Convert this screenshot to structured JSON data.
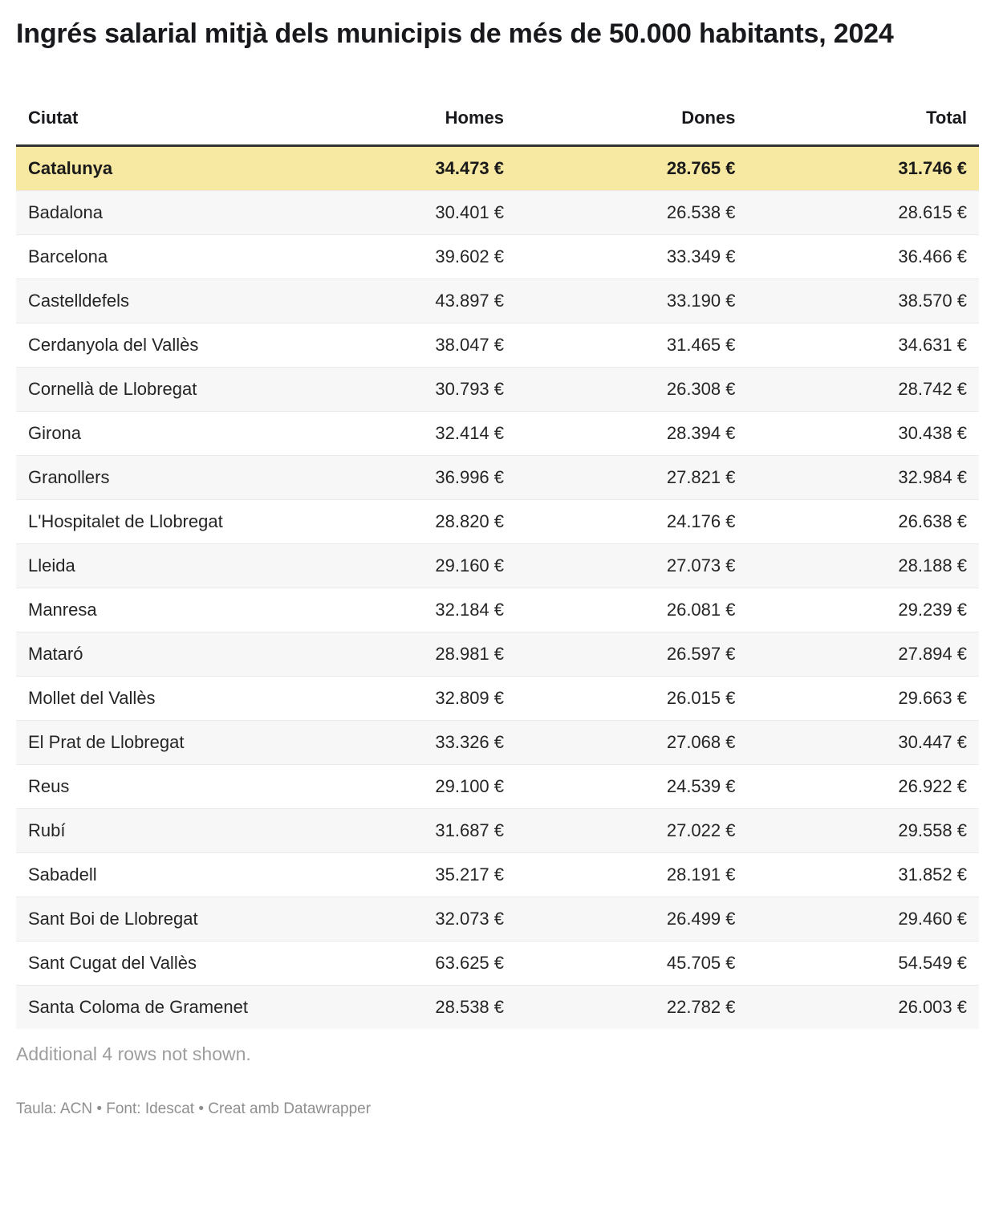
{
  "page": {
    "title": "Ingrés salarial mitjà dels municipis de més de 50.000 habitants, 2024",
    "notes": "Additional 4 rows not shown.",
    "attribution": "Taula: ACN • Font: Idescat • Creat amb Datawrapper"
  },
  "colors": {
    "highlight_row_background": "#f8e9a2",
    "zebra_row_background": "#f7f7f7",
    "header_rule": "#333333",
    "muted_text": "#9e9e9e"
  },
  "chart_data": {
    "type": "table",
    "title": "Ingrés salarial mitjà dels municipis de més de 50.000 habitants, 2024",
    "columns": [
      "Ciutat",
      "Homes",
      "Dones",
      "Total"
    ],
    "highlighted_row": "Catalunya",
    "rows": [
      {
        "ciutat": "Catalunya",
        "homes": "34.473 €",
        "dones": "28.765 €",
        "total": "31.746 €",
        "highlight": true
      },
      {
        "ciutat": "Badalona",
        "homes": "30.401 €",
        "dones": "26.538 €",
        "total": "28.615 €",
        "highlight": false
      },
      {
        "ciutat": "Barcelona",
        "homes": "39.602 €",
        "dones": "33.349 €",
        "total": "36.466 €",
        "highlight": false
      },
      {
        "ciutat": "Castelldefels",
        "homes": "43.897 €",
        "dones": "33.190 €",
        "total": "38.570 €",
        "highlight": false
      },
      {
        "ciutat": "Cerdanyola del Vallès",
        "homes": "38.047 €",
        "dones": "31.465 €",
        "total": "34.631 €",
        "highlight": false
      },
      {
        "ciutat": "Cornellà de Llobregat",
        "homes": "30.793 €",
        "dones": "26.308 €",
        "total": "28.742 €",
        "highlight": false
      },
      {
        "ciutat": "Girona",
        "homes": "32.414 €",
        "dones": "28.394 €",
        "total": "30.438 €",
        "highlight": false
      },
      {
        "ciutat": "Granollers",
        "homes": "36.996 €",
        "dones": "27.821 €",
        "total": "32.984 €",
        "highlight": false
      },
      {
        "ciutat": "L'Hospitalet de Llobregat",
        "homes": "28.820 €",
        "dones": "24.176 €",
        "total": "26.638 €",
        "highlight": false
      },
      {
        "ciutat": "Lleida",
        "homes": "29.160 €",
        "dones": "27.073 €",
        "total": "28.188 €",
        "highlight": false
      },
      {
        "ciutat": "Manresa",
        "homes": "32.184 €",
        "dones": "26.081 €",
        "total": "29.239 €",
        "highlight": false
      },
      {
        "ciutat": "Mataró",
        "homes": "28.981 €",
        "dones": "26.597 €",
        "total": "27.894 €",
        "highlight": false
      },
      {
        "ciutat": "Mollet del Vallès",
        "homes": "32.809 €",
        "dones": "26.015 €",
        "total": "29.663 €",
        "highlight": false
      },
      {
        "ciutat": "El Prat de Llobregat",
        "homes": "33.326 €",
        "dones": "27.068 €",
        "total": "30.447 €",
        "highlight": false
      },
      {
        "ciutat": "Reus",
        "homes": "29.100 €",
        "dones": "24.539 €",
        "total": "26.922 €",
        "highlight": false
      },
      {
        "ciutat": "Rubí",
        "homes": "31.687 €",
        "dones": "27.022 €",
        "total": "29.558 €",
        "highlight": false
      },
      {
        "ciutat": "Sabadell",
        "homes": "35.217 €",
        "dones": "28.191 €",
        "total": "31.852 €",
        "highlight": false
      },
      {
        "ciutat": "Sant Boi de Llobregat",
        "homes": "32.073 €",
        "dones": "26.499 €",
        "total": "29.460 €",
        "highlight": false
      },
      {
        "ciutat": "Sant Cugat del Vallès",
        "homes": "63.625 €",
        "dones": "45.705 €",
        "total": "54.549 €",
        "highlight": false
      },
      {
        "ciutat": "Santa Coloma de Gramenet",
        "homes": "28.538 €",
        "dones": "22.782 €",
        "total": "26.003 €",
        "highlight": false
      }
    ]
  }
}
